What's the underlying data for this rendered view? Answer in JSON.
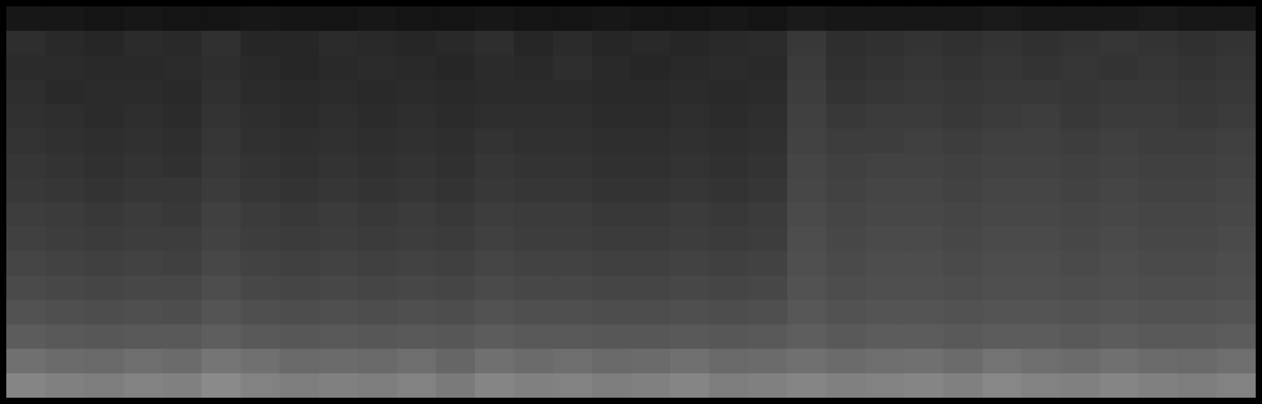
{
  "chart_data": {
    "type": "heatmap",
    "cells": [
      [
        9,
        9,
        8,
        9,
        8,
        8,
        9,
        8,
        8,
        9,
        8,
        8,
        9,
        8,
        8,
        9,
        8,
        8,
        9,
        8,
        10,
        9,
        9,
        9,
        9,
        10,
        9,
        9,
        9,
        10,
        9,
        9
      ],
      [
        18,
        16,
        15,
        17,
        16,
        19,
        15,
        15,
        17,
        16,
        15,
        16,
        18,
        15,
        17,
        15,
        16,
        15,
        16,
        17,
        22,
        18,
        19,
        20,
        19,
        20,
        19,
        20,
        21,
        20,
        19,
        20
      ],
      [
        17,
        17,
        16,
        16,
        17,
        18,
        16,
        15,
        16,
        17,
        16,
        15,
        17,
        16,
        18,
        16,
        15,
        16,
        17,
        16,
        23,
        19,
        20,
        21,
        20,
        21,
        20,
        21,
        20,
        21,
        20,
        21
      ],
      [
        18,
        16,
        17,
        17,
        16,
        19,
        17,
        16,
        17,
        16,
        17,
        16,
        17,
        17,
        17,
        16,
        16,
        17,
        16,
        17,
        24,
        20,
        21,
        22,
        21,
        22,
        22,
        21,
        22,
        22,
        21,
        22
      ],
      [
        19,
        18,
        17,
        18,
        17,
        20,
        18,
        17,
        18,
        17,
        18,
        17,
        18,
        18,
        18,
        17,
        17,
        18,
        17,
        18,
        25,
        22,
        23,
        23,
        22,
        23,
        24,
        22,
        23,
        23,
        22,
        23
      ],
      [
        20,
        19,
        18,
        19,
        18,
        21,
        19,
        18,
        19,
        18,
        19,
        18,
        20,
        19,
        19,
        18,
        18,
        19,
        18,
        19,
        26,
        24,
        24,
        25,
        24,
        25,
        25,
        24,
        25,
        24,
        24,
        25
      ],
      [
        21,
        20,
        19,
        20,
        19,
        22,
        20,
        19,
        20,
        19,
        20,
        19,
        21,
        20,
        20,
        19,
        19,
        20,
        19,
        20,
        27,
        25,
        26,
        26,
        25,
        26,
        26,
        25,
        26,
        25,
        25,
        26
      ],
      [
        22,
        21,
        20,
        21,
        21,
        23,
        21,
        20,
        21,
        20,
        21,
        20,
        22,
        21,
        21,
        20,
        20,
        21,
        20,
        21,
        28,
        26,
        27,
        27,
        26,
        27,
        27,
        26,
        27,
        26,
        26,
        27
      ],
      [
        24,
        23,
        22,
        23,
        22,
        25,
        23,
        22,
        23,
        22,
        23,
        22,
        24,
        23,
        23,
        22,
        22,
        23,
        22,
        23,
        29,
        27,
        28,
        28,
        27,
        28,
        28,
        27,
        28,
        27,
        27,
        28
      ],
      [
        25,
        24,
        23,
        24,
        24,
        26,
        24,
        23,
        24,
        23,
        24,
        23,
        25,
        24,
        24,
        23,
        23,
        24,
        23,
        24,
        30,
        28,
        29,
        29,
        28,
        29,
        29,
        28,
        29,
        28,
        28,
        29
      ],
      [
        27,
        26,
        25,
        26,
        25,
        28,
        26,
        25,
        26,
        25,
        26,
        25,
        27,
        26,
        26,
        25,
        25,
        26,
        25,
        26,
        31,
        29,
        30,
        30,
        29,
        30,
        30,
        29,
        30,
        29,
        29,
        30
      ],
      [
        29,
        28,
        27,
        28,
        28,
        30,
        28,
        27,
        28,
        27,
        28,
        27,
        29,
        28,
        28,
        27,
        27,
        28,
        27,
        28,
        32,
        30,
        31,
        31,
        30,
        31,
        31,
        30,
        31,
        30,
        30,
        31
      ],
      [
        32,
        31,
        30,
        31,
        30,
        33,
        31,
        30,
        31,
        30,
        31,
        30,
        32,
        31,
        31,
        30,
        30,
        31,
        30,
        31,
        34,
        32,
        33,
        33,
        32,
        33,
        33,
        32,
        33,
        32,
        32,
        33
      ],
      [
        36,
        35,
        34,
        35,
        35,
        37,
        35,
        34,
        35,
        34,
        35,
        34,
        36,
        35,
        35,
        34,
        34,
        35,
        34,
        35,
        37,
        35,
        36,
        36,
        35,
        36,
        36,
        35,
        36,
        35,
        35,
        36
      ],
      [
        44,
        42,
        41,
        43,
        42,
        46,
        44,
        41,
        42,
        41,
        43,
        40,
        44,
        42,
        43,
        41,
        42,
        44,
        41,
        42,
        44,
        42,
        43,
        44,
        42,
        45,
        43,
        42,
        44,
        42,
        41,
        43
      ],
      [
        52,
        50,
        49,
        51,
        50,
        54,
        51,
        49,
        50,
        49,
        51,
        48,
        52,
        50,
        51,
        49,
        50,
        52,
        49,
        50,
        52,
        50,
        51,
        52,
        50,
        53,
        51,
        50,
        52,
        50,
        49,
        51
      ]
    ],
    "xlim": [
      0,
      32
    ],
    "ylim": [
      0,
      16
    ],
    "zlim": [
      0,
      100
    ],
    "tick_labels": false
  }
}
